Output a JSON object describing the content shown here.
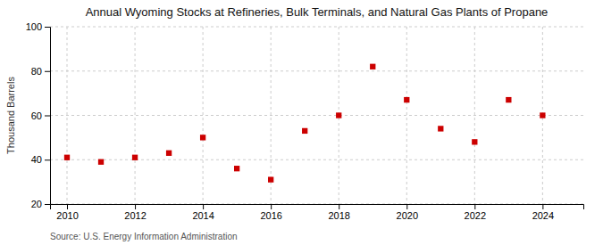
{
  "chart_data": {
    "type": "scatter",
    "title": "Annual Wyoming Stocks at Refineries, Bulk Terminals, and Natural Gas Plants of Propane",
    "ylabel": "Thousand Barrels",
    "annotations": [
      "Source: U.S. Energy Information Administration"
    ],
    "x": [
      2010,
      2011,
      2012,
      2013,
      2014,
      2015,
      2016,
      2017,
      2018,
      2019,
      2020,
      2021,
      2022,
      2023,
      2024
    ],
    "values": [
      41,
      39,
      41,
      43,
      50,
      36,
      31,
      53,
      60,
      82,
      67,
      54,
      48,
      67,
      60
    ],
    "color": "#cc0000",
    "marker": "square",
    "xlim": [
      2009.5,
      2025.2
    ],
    "ylim": [
      20,
      100
    ],
    "xticks": [
      2010,
      2012,
      2014,
      2016,
      2018,
      2020,
      2022,
      2024
    ],
    "yticks": [
      20,
      40,
      60,
      80,
      100
    ],
    "grid": true
  }
}
